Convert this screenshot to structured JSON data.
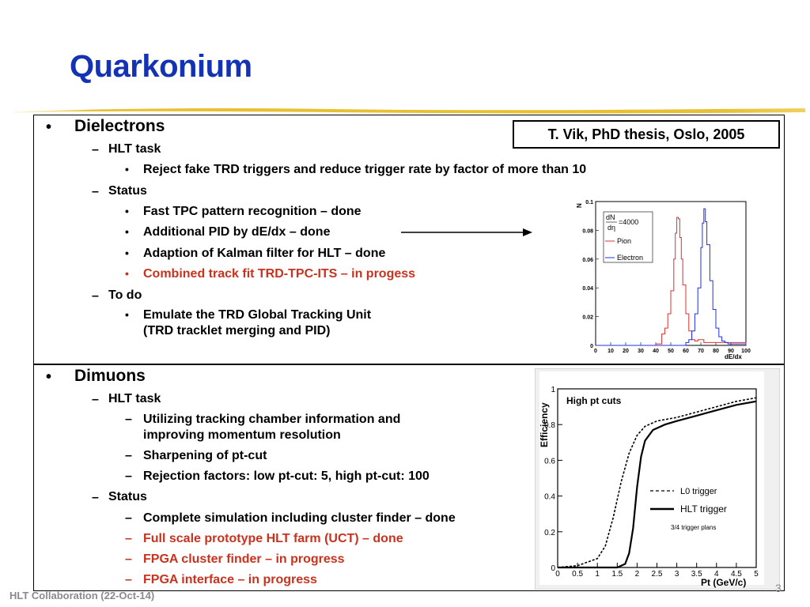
{
  "slide": {
    "title": "Quarkonium",
    "reference": "T. Vik, PhD thesis, Oslo, 2005",
    "footer": "HLT Collaboration (22-Oct-14)",
    "page_number": "3"
  },
  "section1": {
    "heading": "Dielectrons",
    "task_label": "HLT task",
    "task_items": [
      "Reject fake TRD triggers and reduce trigger rate by factor of more than 10"
    ],
    "status_label": "Status",
    "status_items": [
      "Fast TPC pattern recognition – done",
      "Additional PID by dE/dx – done",
      "Adaption of Kalman filter for HLT – done",
      "Combined track fit TRD-TPC-ITS – in progess"
    ],
    "todo_label": "To do",
    "todo_items": [
      "Emulate the TRD Global Tracking Unit",
      "(TRD tracklet merging and PID)"
    ]
  },
  "section2": {
    "heading": "Dimuons",
    "task_label": "HLT task",
    "task_items": [
      "Utilizing tracking chamber information and",
      "improving momentum resolution",
      "Sharpening of pt-cut",
      "Rejection factors: low pt-cut:  5, high pt-cut: 100"
    ],
    "status_label": "Status",
    "status_items": [
      "Complete simulation including cluster finder – done",
      "Full scale prototype HLT farm (UCT) – done",
      "FPGA cluster finder – in progress",
      "FPGA interface – in progress"
    ]
  },
  "colors": {
    "title": "#1432b4",
    "highlight": "#c8321e",
    "pion": "#e03030",
    "electron": "#2030e0"
  },
  "chart_data": [
    {
      "type": "line",
      "xlabel": "dE/dx",
      "ylabel": "N",
      "xlim": [
        0,
        100
      ],
      "ylim": [
        0,
        0.1
      ],
      "xticks": [
        "0",
        "10",
        "20",
        "30",
        "40",
        "50",
        "60",
        "70",
        "80",
        "90",
        "100"
      ],
      "yticks": [
        "0",
        "0.02",
        "0.04",
        "0.06",
        "0.08",
        "0.1"
      ],
      "annotation_top": "dN",
      "annotation_bottom": "dη",
      "annotation_value": "=4000",
      "series": [
        {
          "name": "Pion",
          "color": "#e03030",
          "x": [
            0,
            36,
            40,
            44,
            46,
            48,
            50,
            52,
            53,
            54,
            55,
            56,
            57,
            58,
            60,
            62,
            64,
            66,
            68,
            72,
            100
          ],
          "y": [
            0,
            0,
            0.001,
            0.008,
            0.012,
            0.022,
            0.038,
            0.06,
            0.078,
            0.089,
            0.088,
            0.075,
            0.06,
            0.042,
            0.022,
            0.01,
            0.004,
            0.003,
            0.004,
            0.002,
            0
          ]
        },
        {
          "name": "Electron",
          "color": "#2030e0",
          "x": [
            0,
            58,
            60,
            62,
            64,
            66,
            68,
            70,
            71,
            72,
            73,
            74,
            76,
            78,
            80,
            82,
            84,
            86,
            88,
            100
          ],
          "y": [
            0,
            0,
            0.002,
            0.004,
            0.01,
            0.022,
            0.04,
            0.068,
            0.085,
            0.095,
            0.086,
            0.07,
            0.045,
            0.025,
            0.012,
            0.006,
            0.003,
            0.002,
            0.001,
            0
          ]
        }
      ]
    },
    {
      "type": "line",
      "title": "High pt cuts",
      "xlabel": "Pt (GeV/c)",
      "ylabel": "Efficiency",
      "xlim": [
        0,
        5
      ],
      "ylim": [
        0,
        1
      ],
      "xticks": [
        "0",
        "0.5",
        "1",
        "1.5",
        "2",
        "2.5",
        "3",
        "3.5",
        "4",
        "4.5",
        "5"
      ],
      "yticks": [
        "0",
        "0.2",
        "0.4",
        "0.6",
        "0.8",
        "1"
      ],
      "note": "3/4 trigger plans",
      "series": [
        {
          "name": "L0 trigger",
          "style": "dashed",
          "x": [
            0,
            0.5,
            1.0,
            1.2,
            1.4,
            1.6,
            1.8,
            2.0,
            2.2,
            2.5,
            3.0,
            3.5,
            4.0,
            4.5,
            5.0
          ],
          "y": [
            0,
            0.01,
            0.05,
            0.12,
            0.28,
            0.48,
            0.64,
            0.74,
            0.79,
            0.82,
            0.84,
            0.87,
            0.9,
            0.93,
            0.95
          ]
        },
        {
          "name": "HLT trigger",
          "style": "solid",
          "x": [
            0,
            1.5,
            1.7,
            1.8,
            1.9,
            2.0,
            2.1,
            2.2,
            2.4,
            2.7,
            3.0,
            3.5,
            4.0,
            4.5,
            5.0
          ],
          "y": [
            0,
            0,
            0.02,
            0.08,
            0.22,
            0.45,
            0.62,
            0.71,
            0.77,
            0.8,
            0.82,
            0.85,
            0.88,
            0.91,
            0.93
          ]
        }
      ]
    }
  ]
}
